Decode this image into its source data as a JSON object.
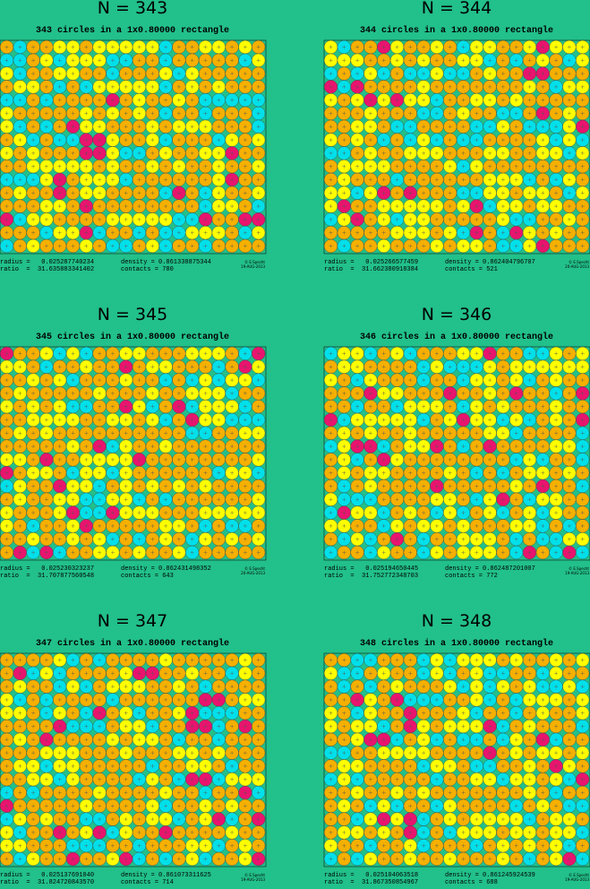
{
  "panels": [
    {
      "title": "N = 343",
      "subtitle": "343 circles in a 1x0.80000 rectangle",
      "radius": "radius =   0.025287740234",
      "density": "density = 0.861338875344",
      "ratio": "ratio  =  31.635883341402",
      "contacts": "contacts = 780",
      "credit": "© E.Specht",
      "date": "19-AUG-2013"
    },
    {
      "title": "N = 344",
      "subtitle": "344 circles in a 1x0.80000 rectangle",
      "radius": "radius =   0.025266577459",
      "density": "density = 0.862404796707",
      "ratio": "ratio  =  31.662380918384",
      "contacts": "contacts = 521",
      "credit": "© E.Specht",
      "date": "20-AUG-2013"
    },
    {
      "title": "N = 345",
      "subtitle": "345 circles in a 1x0.80000 rectangle",
      "radius": "radius =   0.025230323237",
      "density": "density = 0.862431498352",
      "ratio": "ratio  =  31.707877560548",
      "contacts": "contacts = 643",
      "credit": "© E.Specht",
      "date": "20-AUG-2013"
    },
    {
      "title": "N = 346",
      "subtitle": "346 circles in a 1x0.80000 rectangle",
      "radius": "radius =   0.025194650445",
      "density": "density = 0.862487201007",
      "ratio": "ratio  =  31.752772348703",
      "contacts": "contacts = 772",
      "credit": "© E.Specht",
      "date": "19-AUG-2013"
    },
    {
      "title": "N = 347",
      "subtitle": "347 circles in a 1x0.80000 rectangle",
      "radius": "radius =   0.025137691040",
      "density": "density = 0.861073311625",
      "ratio": "ratio  =  31.824720843570",
      "contacts": "contacts = 714",
      "credit": "© E.Specht",
      "date": "19-AUG-2013"
    },
    {
      "title": "N = 348",
      "subtitle": "348 circles in a 1x0.80000 rectangle",
      "radius": "radius =   0.025104063518",
      "density": "density = 0.861245924539",
      "ratio": "ratio  =  31.867350854967",
      "contacts": "contacts = 688",
      "credit": "© E.Specht",
      "date": "19-AUG-2013"
    }
  ]
}
